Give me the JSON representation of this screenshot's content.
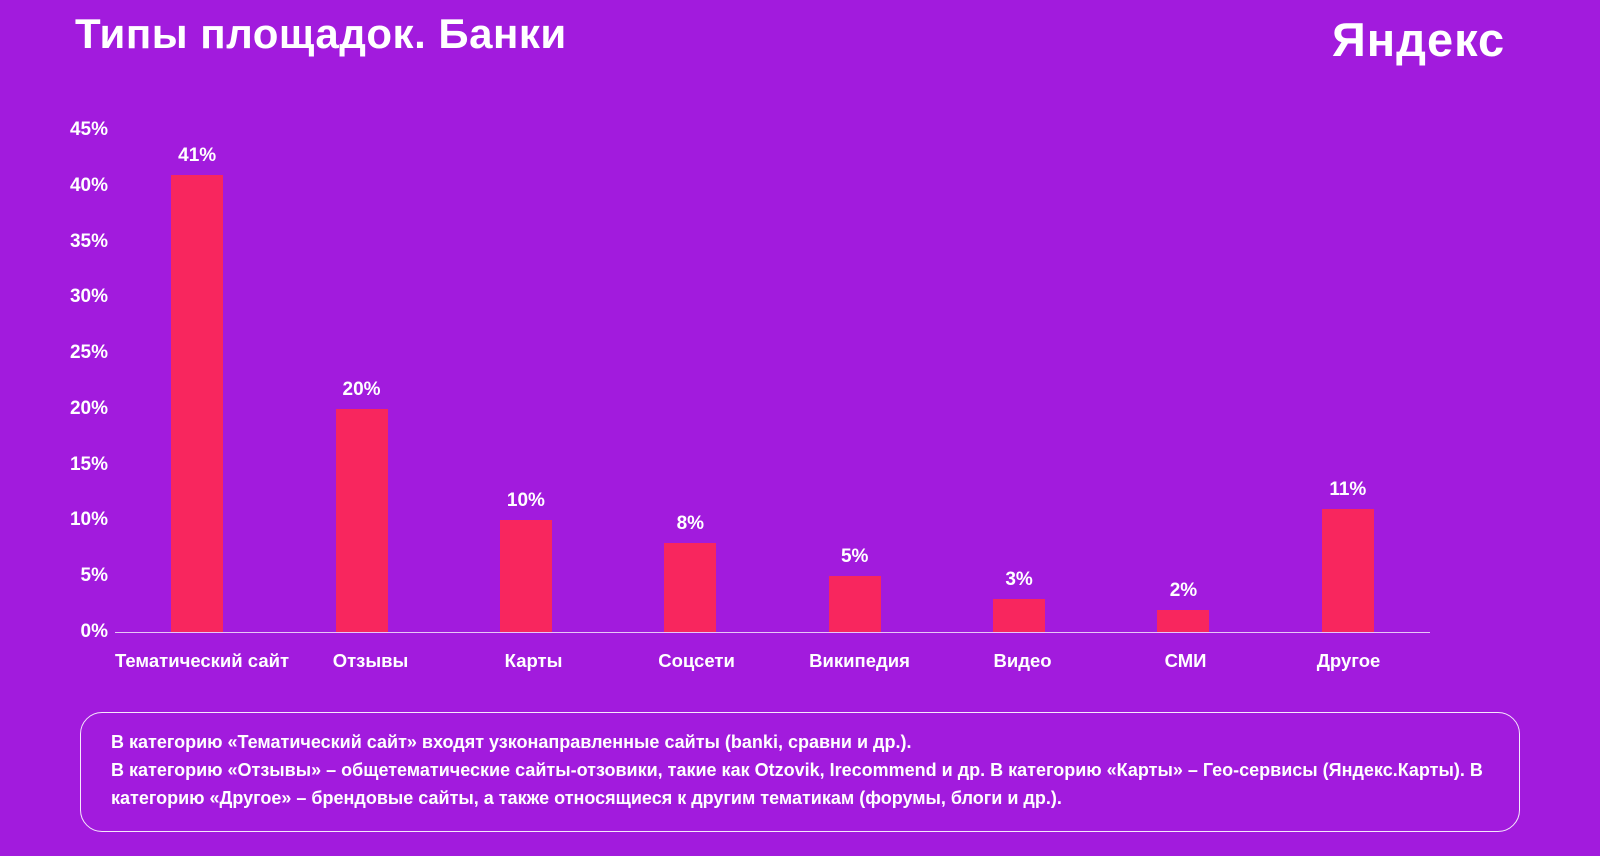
{
  "page": {
    "title": "Типы площадок. Банки",
    "logo": "Яндекс"
  },
  "chart_data": {
    "type": "bar",
    "title": "Типы площадок. Банки",
    "categories": [
      "Тематический сайт",
      "Отзывы",
      "Карты",
      "Соцсети",
      "Википедия",
      "Видео",
      "СМИ",
      "Другое"
    ],
    "values": [
      41,
      20,
      10,
      8,
      5,
      3,
      2,
      11
    ],
    "value_labels": [
      "41%",
      "20%",
      "10%",
      "8%",
      "5%",
      "3%",
      "2%",
      "11%"
    ],
    "xlabel": "",
    "ylabel": "",
    "ylim": [
      0,
      45
    ],
    "ytick_values": [
      45,
      40,
      35,
      30,
      25,
      20,
      15,
      10,
      5,
      0
    ],
    "ytick_labels": [
      "45%",
      "40%",
      "35%",
      "30%",
      "25%",
      "20%",
      "15%",
      "10%",
      "5%",
      "0%"
    ],
    "grid": false,
    "legend": "none",
    "bar_color": "#F8265E",
    "background_color": "#A21BDD",
    "text_color": "#FFFFFF"
  },
  "footnote": {
    "paragraph1": "В категорию «Тематический сайт» входят узконаправленные сайты (banki, сравни и др.).",
    "paragraph2": "В категорию «Отзывы» – общетематические сайты-отзовики, такие как Otzovik, Irecommend и др. В категорию «Карты» – Гео-сервисы (Яндекс.Карты). В категорию «Другое» – брендовые сайты, а также относящиеся к другим тематикам (форумы, блоги и др.)."
  }
}
